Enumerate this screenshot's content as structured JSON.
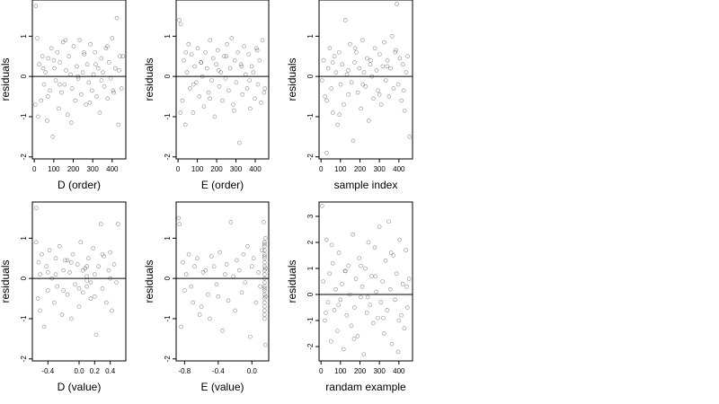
{
  "chart_data": [
    {
      "type": "scatter",
      "xlabel": "D (order)",
      "ylabel": "residuals",
      "xlim": [
        -10,
        470
      ],
      "ylim": [
        -2.05,
        1.9
      ],
      "xticks": [
        "0",
        "100",
        "200",
        "300",
        "400"
      ],
      "xtick_values": [
        0,
        100,
        200,
        300,
        400
      ],
      "yticks": [
        "-2",
        "-1",
        "0",
        "1"
      ],
      "ytick_values": [
        -2,
        -1,
        0,
        1
      ],
      "hline": 0,
      "series": [
        {
          "x": [
            8,
            15,
            25,
            35,
            42,
            50,
            58,
            66,
            72,
            80,
            88,
            95,
            103,
            110,
            118,
            126,
            132,
            140,
            148,
            155,
            163,
            171,
            178,
            186,
            194,
            202,
            210,
            218,
            226,
            233,
            241,
            249,
            257,
            265,
            272,
            280,
            288,
            296,
            304,
            312,
            320,
            328,
            336,
            344,
            352,
            360,
            368,
            376,
            384,
            392,
            400,
            408,
            416,
            424,
            432,
            440,
            448,
            5,
            20,
            45,
            70,
            100,
            130,
            160,
            190,
            225,
            255,
            285,
            315,
            345,
            375,
            405,
            435,
            455
          ],
          "y": [
            1.75,
            0.95,
            0.3,
            -0.6,
            0.5,
            -0.2,
            0.1,
            -1.1,
            0.45,
            -0.35,
            0.7,
            -1.5,
            0.2,
            -0.1,
            0.6,
            -0.8,
            0.35,
            -0.4,
            0.85,
            -0.2,
            0.15,
            -0.95,
            0.5,
            0.05,
            -0.3,
            0.75,
            -0.6,
            0.25,
            -0.05,
            0.9,
            -0.45,
            0.1,
            0.55,
            -0.7,
            0.3,
            -0.15,
            0.8,
            -0.35,
            0.05,
            0.6,
            -0.5,
            0.2,
            -0.9,
            0.45,
            0.1,
            -0.25,
            0.7,
            -0.55,
            0.35,
            -0.05,
            0.95,
            -0.4,
            0.2,
            1.45,
            -1.2,
            0.5,
            -0.3,
            -0.7,
            -1.0,
            0.2,
            -0.5,
            0.4,
            -0.2,
            0.9,
            -1.15,
            0.0,
            0.6,
            -0.65,
            0.3,
            -0.1,
            0.75,
            -0.35,
            0.15,
            0.5
          ]
        }
      ]
    },
    {
      "type": "scatter",
      "xlabel": "E (order)",
      "ylabel": "residuals",
      "xlim": [
        -10,
        470
      ],
      "ylim": [
        -2.05,
        1.9
      ],
      "xticks": [
        "0",
        "100",
        "200",
        "300",
        "400"
      ],
      "xtick_values": [
        0,
        100,
        200,
        300,
        400
      ],
      "yticks": [
        "-2",
        "-1",
        "0",
        "1"
      ],
      "ytick_values": [
        -2,
        -1,
        0,
        1
      ],
      "hline": 0,
      "series": [
        {
          "x": [
            6,
            14,
            22,
            30,
            38,
            46,
            54,
            62,
            70,
            78,
            86,
            94,
            102,
            110,
            118,
            126,
            134,
            142,
            150,
            158,
            166,
            174,
            182,
            190,
            198,
            206,
            214,
            222,
            230,
            238,
            246,
            254,
            262,
            270,
            278,
            286,
            294,
            302,
            310,
            318,
            326,
            334,
            342,
            350,
            358,
            366,
            374,
            382,
            390,
            398,
            406,
            414,
            422,
            430,
            438,
            446,
            12,
            40,
            80,
            120,
            165,
            210,
            250,
            290,
            330,
            370,
            410,
            450
          ],
          "y": [
            1.4,
            1.3,
            -0.6,
            0.4,
            -1.2,
            0.1,
            0.8,
            -0.3,
            0.55,
            -0.9,
            0.25,
            -0.15,
            0.7,
            -0.5,
            0.35,
            0.0,
            -0.75,
            0.6,
            0.2,
            -0.4,
            0.9,
            -0.1,
            0.45,
            -1.0,
            0.3,
            0.65,
            -0.25,
            0.1,
            -0.6,
            0.5,
            -0.05,
            0.8,
            -0.35,
            0.2,
            0.95,
            -0.7,
            0.4,
            -0.15,
            0.6,
            -1.65,
            0.3,
            -0.45,
            0.75,
            0.05,
            -0.3,
            0.55,
            -0.8,
            0.25,
            0.1,
            -0.55,
            0.7,
            -0.2,
            0.4,
            -0.65,
            0.9,
            -0.4,
            -0.9,
            0.6,
            -0.2,
            0.35,
            -0.55,
            0.15,
            0.5,
            -0.85,
            0.25,
            -0.1,
            0.65,
            -0.3
          ]
        }
      ]
    },
    {
      "type": "scatter",
      "xlabel": "sample index",
      "ylabel": "residuals",
      "xlim": [
        -10,
        470
      ],
      "ylim": [
        -2.05,
        1.9
      ],
      "xticks": [
        "0",
        "100",
        "200",
        "300",
        "400"
      ],
      "xtick_values": [
        0,
        100,
        200,
        300,
        400
      ],
      "yticks": [
        "-2",
        "-1",
        "0",
        "1"
      ],
      "ytick_values": [
        -2,
        -1,
        0,
        1
      ],
      "hline": 0,
      "series": [
        {
          "x": [
            5,
            13,
            21,
            29,
            37,
            45,
            53,
            61,
            69,
            77,
            85,
            93,
            101,
            109,
            117,
            125,
            133,
            141,
            149,
            157,
            165,
            173,
            181,
            189,
            197,
            205,
            213,
            221,
            229,
            237,
            245,
            253,
            261,
            269,
            277,
            285,
            293,
            301,
            309,
            317,
            325,
            333,
            341,
            349,
            357,
            365,
            373,
            381,
            389,
            397,
            405,
            413,
            421,
            429,
            437,
            445,
            30,
            60,
            95,
            140,
            175,
            215,
            255,
            300,
            340,
            385,
            425,
            455
          ],
          "y": [
            -0.1,
            0.4,
            -0.5,
            -1.9,
            0.2,
            0.7,
            -0.3,
            -0.9,
            0.5,
            0.1,
            -1.2,
            0.6,
            -0.2,
            0.3,
            -0.7,
            1.4,
            0.05,
            -0.45,
            0.8,
            -0.15,
            -1.6,
            0.35,
            0.6,
            -0.4,
            0.2,
            -0.8,
            0.9,
            0.1,
            -0.25,
            0.45,
            -1.1,
            0.3,
            0.0,
            -0.55,
            0.7,
            0.15,
            -0.35,
            0.55,
            -0.7,
            0.25,
            0.85,
            -0.1,
            0.4,
            -0.5,
            0.2,
            1.0,
            -0.3,
            0.6,
            1.8,
            -0.2,
            0.45,
            -0.6,
            0.3,
            -0.85,
            0.1,
            0.5,
            -0.6,
            0.35,
            -0.95,
            0.15,
            0.7,
            -0.2,
            0.4,
            -0.45,
            0.25,
            0.65,
            -0.35,
            -1.5
          ]
        }
      ]
    },
    {
      "type": "scatter",
      "xlabel": "D (value)",
      "ylabel": "residuals",
      "xlim": [
        -0.6,
        0.6
      ],
      "ylim": [
        -2.05,
        1.9
      ],
      "xticks": [
        "-0.4",
        "0.0",
        "0.2",
        "0.4"
      ],
      "xtick_values": [
        -0.4,
        0.0,
        0.2,
        0.4
      ],
      "yticks": [
        "-2",
        "-1",
        "0",
        "1"
      ],
      "ytick_values": [
        -2,
        -1,
        0,
        1
      ],
      "hline": 0,
      "series": [
        {
          "x": [
            -0.55,
            -0.55,
            -0.53,
            -0.52,
            -0.5,
            -0.5,
            -0.48,
            -0.45,
            -0.42,
            -0.4,
            -0.38,
            -0.35,
            -0.32,
            -0.3,
            -0.28,
            -0.25,
            -0.22,
            -0.2,
            -0.18,
            -0.15,
            -0.12,
            -0.1,
            -0.08,
            -0.05,
            -0.02,
            0.0,
            0.02,
            0.05,
            0.08,
            0.1,
            0.12,
            0.15,
            0.18,
            0.2,
            0.22,
            0.25,
            0.28,
            0.3,
            0.32,
            0.35,
            0.38,
            0.4,
            0.42,
            0.45,
            0.48,
            0.5,
            -0.3,
            -0.2,
            -0.1,
            0.1,
            0.1,
            0.1,
            0.2,
            0.3,
            0.0,
            -0.4,
            0.4,
            0.15,
            -0.15,
            0.05
          ],
          "y": [
            1.75,
            0.9,
            -0.5,
            0.4,
            -0.8,
            0.1,
            0.6,
            -1.2,
            0.3,
            -0.3,
            0.7,
            0.0,
            -0.6,
            0.5,
            -0.2,
            0.8,
            -0.9,
            0.2,
            0.45,
            -0.4,
            0.15,
            -1.0,
            0.6,
            -0.15,
            0.35,
            -0.7,
            0.9,
            -0.35,
            0.25,
            -0.05,
            0.5,
            -0.5,
            0.75,
            0.1,
            -1.4,
            0.3,
            1.35,
            -0.25,
            0.55,
            -0.6,
            0.2,
            0.65,
            -0.8,
            0.35,
            -0.1,
            1.35,
            0.1,
            -0.3,
            0.4,
            0.05,
            -0.2,
            0.3,
            -0.45,
            0.6,
            -0.25,
            0.15,
            0.0,
            -0.1,
            0.45,
            0.2
          ]
        }
      ]
    },
    {
      "type": "scatter",
      "xlabel": "E (value)",
      "ylabel": "residuals",
      "xlim": [
        -0.9,
        0.2
      ],
      "ylim": [
        -2.05,
        1.9
      ],
      "xticks": [
        "-0.8",
        "-0.4",
        "0.0"
      ],
      "xtick_values": [
        -0.8,
        -0.4,
        0.0
      ],
      "yticks": [
        "-2",
        "-1",
        "0",
        "1"
      ],
      "ytick_values": [
        -2,
        -1,
        0,
        1
      ],
      "hline": 0,
      "series": [
        {
          "x": [
            -0.87,
            -0.86,
            -0.84,
            -0.82,
            -0.8,
            -0.78,
            -0.75,
            -0.72,
            -0.7,
            -0.68,
            -0.65,
            -0.62,
            -0.6,
            -0.58,
            -0.55,
            -0.52,
            -0.5,
            -0.48,
            -0.45,
            -0.42,
            -0.4,
            -0.38,
            -0.35,
            -0.32,
            -0.3,
            -0.28,
            -0.25,
            -0.22,
            -0.2,
            -0.18,
            -0.15,
            -0.12,
            -0.1,
            -0.08,
            -0.05,
            -0.02,
            0.0,
            0.02,
            0.05,
            0.08,
            0.1,
            0.12,
            0.14,
            0.15,
            0.15,
            0.15,
            0.15,
            0.15,
            0.15,
            0.15,
            0.15,
            0.15,
            0.15,
            0.15,
            0.15,
            0.15,
            0.15,
            0.15,
            0.15,
            0.15,
            0.15,
            0.15,
            0.15,
            0.15,
            0.15,
            0.15,
            0.16,
            0.16,
            0.16,
            0.16
          ],
          "y": [
            1.5,
            1.35,
            -1.2,
            0.4,
            -0.3,
            0.1,
            0.6,
            -0.2,
            -0.6,
            0.3,
            0.5,
            -0.9,
            -0.7,
            0.15,
            0.2,
            -0.4,
            -1.0,
            0.55,
            0.3,
            -0.15,
            -0.45,
            0.65,
            -1.3,
            0.1,
            0.35,
            -0.55,
            1.4,
            0.05,
            -0.8,
            0.45,
            0.2,
            -0.35,
            0.6,
            -0.1,
            0.8,
            -1.45,
            0.3,
            0.5,
            -0.6,
            0.15,
            -0.2,
            0.7,
            1.4,
            0.9,
            0.8,
            0.7,
            0.6,
            0.5,
            0.4,
            0.3,
            0.2,
            0.1,
            0.0,
            -0.1,
            -0.2,
            -0.3,
            -0.4,
            -0.5,
            -0.6,
            -0.7,
            -0.8,
            -0.9,
            -1.0,
            0.85,
            0.55,
            -0.25,
            0.25,
            -0.45,
            -1.65,
            1.0
          ]
        }
      ]
    },
    {
      "type": "scatter",
      "xlabel": "randam example",
      "ylabel": "residuals",
      "xlim": [
        -10,
        470
      ],
      "ylim": [
        -2.55,
        3.55
      ],
      "xticks": [
        "0",
        "100",
        "200",
        "300",
        "400"
      ],
      "xtick_values": [
        0,
        100,
        200,
        300,
        400
      ],
      "yticks": [
        "-2",
        "-1",
        "0",
        "1",
        "2",
        "3"
      ],
      "ytick_values": [
        -2,
        -1,
        0,
        1,
        2,
        3
      ],
      "hline": 0,
      "series": [
        {
          "x": [
            5,
            12,
            20,
            28,
            36,
            44,
            52,
            60,
            68,
            76,
            84,
            92,
            100,
            108,
            116,
            124,
            132,
            140,
            148,
            156,
            164,
            172,
            180,
            188,
            196,
            204,
            212,
            220,
            228,
            236,
            244,
            252,
            260,
            268,
            276,
            284,
            292,
            300,
            308,
            316,
            324,
            332,
            340,
            348,
            356,
            364,
            372,
            380,
            388,
            396,
            404,
            412,
            420,
            428,
            436,
            444,
            452,
            25,
            55,
            90,
            125,
            170,
            205,
            240,
            280,
            320,
            360,
            400,
            440
          ],
          "y": [
            3.4,
            0.5,
            -1.0,
            2.1,
            -0.3,
            0.8,
            -1.8,
            1.2,
            -0.6,
            0.2,
            -1.4,
            1.6,
            -0.2,
            0.4,
            -2.1,
            0.9,
            -0.8,
            1.1,
            0.0,
            -1.2,
            2.3,
            -0.5,
            0.6,
            -1.6,
            1.4,
            -0.1,
            0.3,
            -2.3,
            1.0,
            -0.7,
            2.0,
            -0.4,
            0.7,
            -1.1,
            1.8,
            0.1,
            -0.9,
            2.6,
            -0.3,
            0.5,
            -1.5,
            1.3,
            -0.6,
            2.8,
            0.2,
            -1.9,
            1.5,
            -0.2,
            0.8,
            -2.2,
            2.1,
            -0.8,
            0.4,
            -1.3,
            1.7,
            -0.5,
            0.6,
            -0.7,
            1.9,
            -0.4,
            0.9,
            -1.7,
            1.1,
            -0.1,
            0.7,
            -0.9,
            1.6,
            -1.0,
            0.3
          ]
        }
      ]
    }
  ]
}
